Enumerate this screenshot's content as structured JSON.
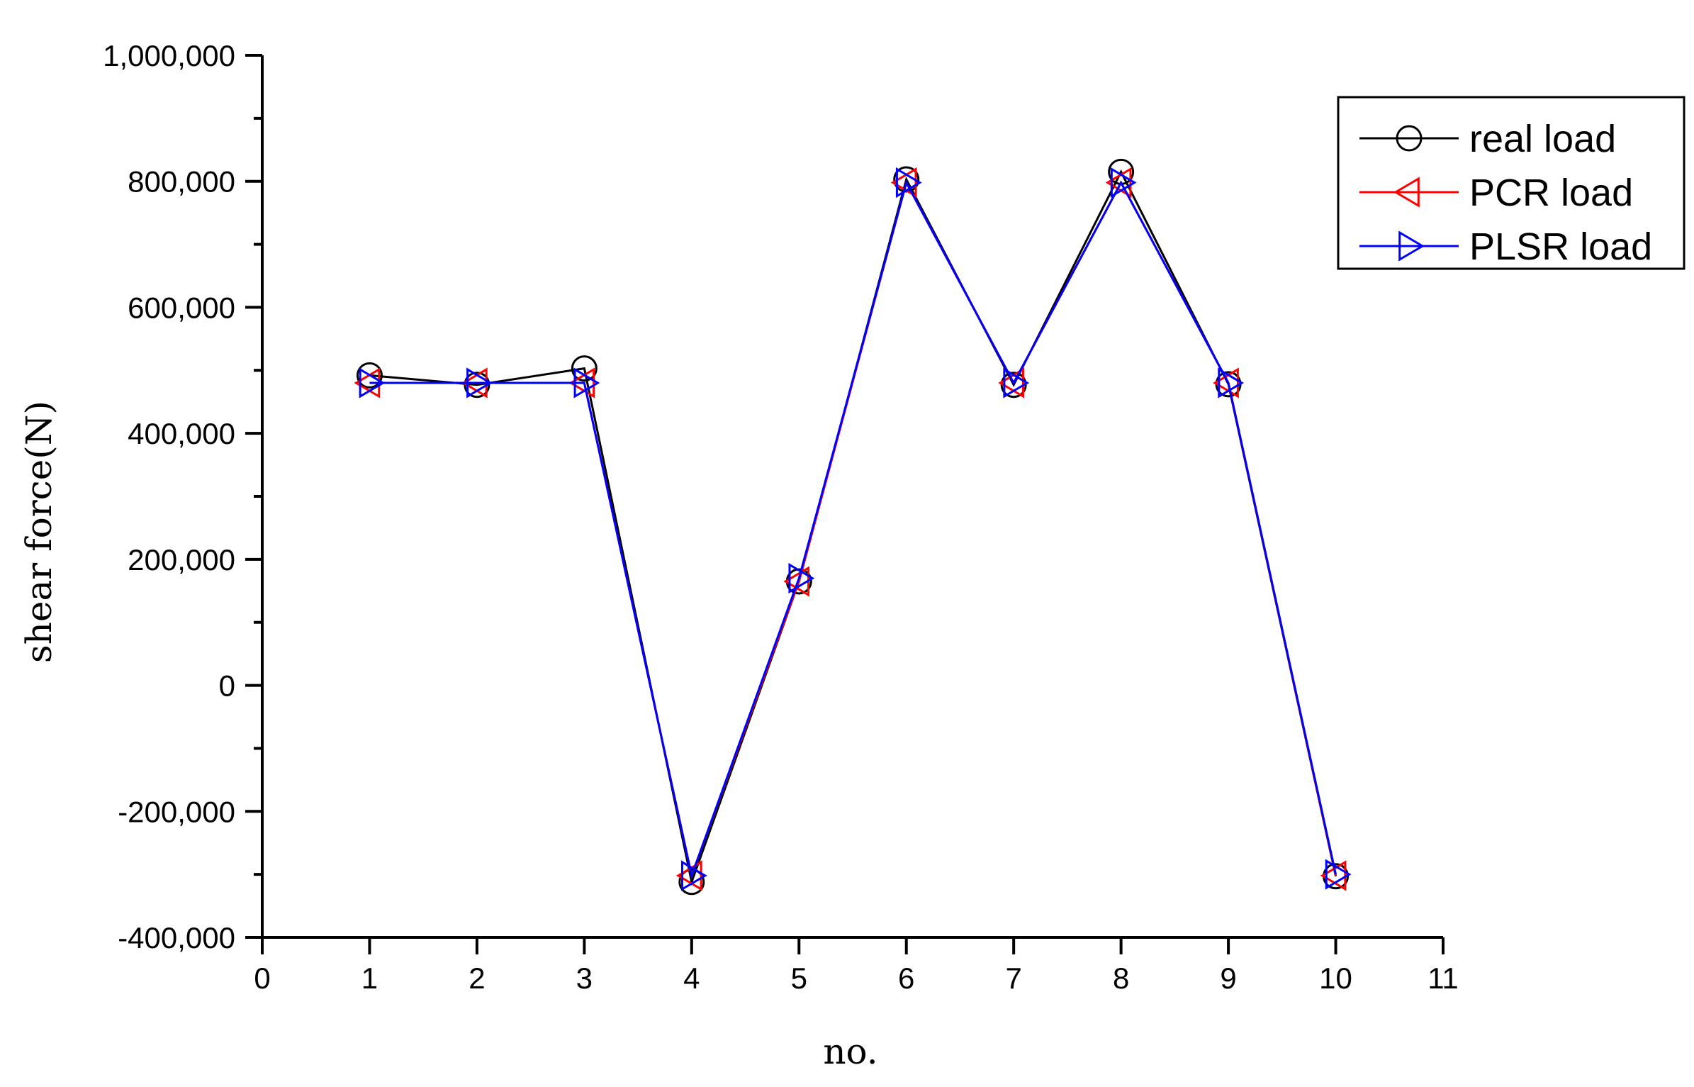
{
  "chart_data": {
    "type": "line",
    "title": "",
    "xlabel": "no.",
    "ylabel": "shear force(N)",
    "xlim": [
      0,
      11
    ],
    "ylim": [
      -400000,
      1000000
    ],
    "x_ticks": [
      "0",
      "1",
      "2",
      "3",
      "4",
      "5",
      "6",
      "7",
      "8",
      "9",
      "10",
      "11"
    ],
    "y_ticks": [
      "-400,000",
      "-200,000",
      "0",
      "200,000",
      "400,000",
      "600,000",
      "800,000",
      "1,000,000"
    ],
    "x": [
      1,
      2,
      3,
      4,
      5,
      6,
      7,
      8,
      9,
      10
    ],
    "grid": false,
    "legend_position": "top-right",
    "series": [
      {
        "name": "real load",
        "color": "#000000",
        "marker": "circle",
        "values": [
          492000,
          477000,
          503000,
          -312000,
          165000,
          803000,
          477000,
          815000,
          478000,
          -303000
        ]
      },
      {
        "name": "PCR load",
        "color": "#ff0000",
        "marker": "triangle-left",
        "values": [
          480000,
          480000,
          480000,
          -302000,
          165000,
          798000,
          480000,
          798000,
          480000,
          -302000
        ]
      },
      {
        "name": "PLSR load",
        "color": "#0000ff",
        "marker": "triangle-right",
        "values": [
          480000,
          480000,
          480000,
          -302000,
          170000,
          798000,
          480000,
          798000,
          480000,
          -300000
        ]
      }
    ]
  }
}
